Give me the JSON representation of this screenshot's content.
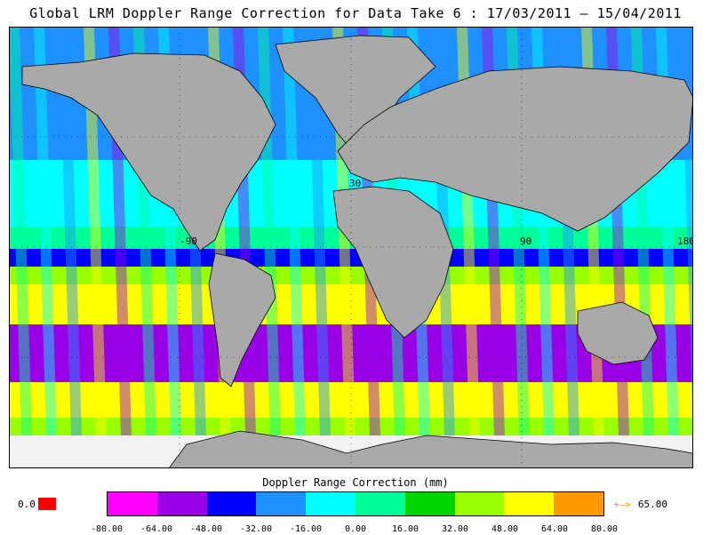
{
  "title": "Global LRM Doppler Range Correction for Data Take 6 : 17/03/2011 – 15/04/2011",
  "legend": {
    "title": "Doppler Range Correction (mm)",
    "ticks": [
      "-80.00",
      "-64.00",
      "-48.00",
      "-32.00",
      "-16.00",
      "0.00",
      "16.00",
      "32.00",
      "48.00",
      "64.00",
      "80.00"
    ],
    "colors": [
      "#ff00ff",
      "#9a00e6",
      "#0000ff",
      "#1e90ff",
      "#00ffff",
      "#00ff99",
      "#00d400",
      "#99ff00",
      "#ffff00",
      "#ff9900"
    ],
    "under_value": "0.0",
    "under_color": "#ff0000",
    "over_arrow": "+–>",
    "over_value": "65.00",
    "over_color": "#ff9900"
  },
  "map": {
    "grid_labels": [
      "30",
      "-90",
      "90",
      "180"
    ],
    "land_color": "#a9a9a9",
    "nodata_color": "#f5f5f5"
  }
}
